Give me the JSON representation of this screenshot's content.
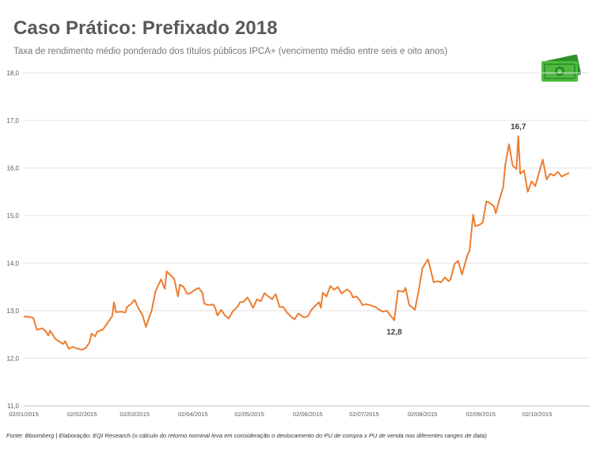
{
  "header": {
    "title": "Caso Prático: Prefixado 2018",
    "subtitle": "Taxa de rendimento médio ponderado dos títulos públicos IPCA+ (vencimento médio entre seis e oito anos)"
  },
  "footer": {
    "source": "Fonte: Bloomberg | Elaboração: EQI Research (o cálculo do retorno nominal leva em consideração o deslocamento do PU de compra x PU de venda nos diferentes ranges de data)"
  },
  "decoration": {
    "icon": "money-bill-icon",
    "color": "#3fae3a"
  },
  "chart_data": {
    "type": "line",
    "title": "",
    "xlabel": "",
    "ylabel": "",
    "ylim": [
      11.0,
      18.0
    ],
    "xlim": [
      "2015-01-02",
      "2015-10-30"
    ],
    "yticks": [
      "11,0",
      "12,0",
      "13,0",
      "14,0",
      "15,0",
      "16,0",
      "17,0",
      "18,0"
    ],
    "xticks": [
      {
        "date": "2015-01-02",
        "label": "02/01/2015"
      },
      {
        "date": "2015-02-02",
        "label": "02/02/2015"
      },
      {
        "date": "2015-03-02",
        "label": "02/03/2015"
      },
      {
        "date": "2015-04-02",
        "label": "02/04/2015"
      },
      {
        "date": "2015-05-02",
        "label": "02/05/2015"
      },
      {
        "date": "2015-06-02",
        "label": "02/06/2015"
      },
      {
        "date": "2015-07-02",
        "label": "02/07/2015"
      },
      {
        "date": "2015-08-02",
        "label": "02/08/2015"
      },
      {
        "date": "2015-09-02",
        "label": "02/09/2015"
      },
      {
        "date": "2015-10-02",
        "label": "02/10/2015"
      }
    ],
    "grid": "horizontal",
    "color": "#ed7d31",
    "series": [
      {
        "name": "",
        "points": [
          [
            "2015-01-02",
            12.88
          ],
          [
            "2015-01-05",
            12.87
          ],
          [
            "2015-01-07",
            12.85
          ],
          [
            "2015-01-09",
            12.6
          ],
          [
            "2015-01-12",
            12.63
          ],
          [
            "2015-01-14",
            12.55
          ],
          [
            "2015-01-15",
            12.48
          ],
          [
            "2015-01-16",
            12.58
          ],
          [
            "2015-01-19",
            12.4
          ],
          [
            "2015-01-21",
            12.35
          ],
          [
            "2015-01-23",
            12.3
          ],
          [
            "2015-01-24",
            12.36
          ],
          [
            "2015-01-26",
            12.2
          ],
          [
            "2015-01-28",
            12.24
          ],
          [
            "2015-01-30",
            12.21
          ],
          [
            "2015-02-02",
            12.18
          ],
          [
            "2015-02-04",
            12.22
          ],
          [
            "2015-02-06",
            12.33
          ],
          [
            "2015-02-07",
            12.52
          ],
          [
            "2015-02-09",
            12.46
          ],
          [
            "2015-02-10",
            12.56
          ],
          [
            "2015-02-13",
            12.6
          ],
          [
            "2015-02-16",
            12.77
          ],
          [
            "2015-02-18",
            12.88
          ],
          [
            "2015-02-19",
            13.18
          ],
          [
            "2015-02-20",
            12.97
          ],
          [
            "2015-02-23",
            12.98
          ],
          [
            "2015-02-25",
            12.96
          ],
          [
            "2015-02-26",
            13.08
          ],
          [
            "2015-02-28",
            13.14
          ],
          [
            "2015-03-02",
            13.23
          ],
          [
            "2015-03-04",
            13.05
          ],
          [
            "2015-03-06",
            12.92
          ],
          [
            "2015-03-08",
            12.66
          ],
          [
            "2015-03-10",
            12.9
          ],
          [
            "2015-03-11",
            13.0
          ],
          [
            "2015-03-13",
            13.4
          ],
          [
            "2015-03-16",
            13.66
          ],
          [
            "2015-03-18",
            13.46
          ],
          [
            "2015-03-19",
            13.83
          ],
          [
            "2015-03-21",
            13.75
          ],
          [
            "2015-03-23",
            13.67
          ],
          [
            "2015-03-25",
            13.3
          ],
          [
            "2015-03-26",
            13.55
          ],
          [
            "2015-03-28",
            13.5
          ],
          [
            "2015-03-30",
            13.35
          ],
          [
            "2015-04-01",
            13.38
          ],
          [
            "2015-04-03",
            13.44
          ],
          [
            "2015-04-05",
            13.48
          ],
          [
            "2015-04-07",
            13.38
          ],
          [
            "2015-04-08",
            13.15
          ],
          [
            "2015-04-10",
            13.12
          ],
          [
            "2015-04-13",
            13.13
          ],
          [
            "2015-04-14",
            13.03
          ],
          [
            "2015-04-15",
            12.9
          ],
          [
            "2015-04-17",
            13.02
          ],
          [
            "2015-04-19",
            12.9
          ],
          [
            "2015-04-21",
            12.84
          ],
          [
            "2015-04-23",
            12.98
          ],
          [
            "2015-04-26",
            13.1
          ],
          [
            "2015-04-27",
            13.18
          ],
          [
            "2015-04-29",
            13.19
          ],
          [
            "2015-05-01",
            13.28
          ],
          [
            "2015-05-04",
            13.06
          ],
          [
            "2015-05-06",
            13.24
          ],
          [
            "2015-05-08",
            13.2
          ],
          [
            "2015-05-10",
            13.37
          ],
          [
            "2015-05-12",
            13.3
          ],
          [
            "2015-05-14",
            13.24
          ],
          [
            "2015-05-16",
            13.35
          ],
          [
            "2015-05-18",
            13.08
          ],
          [
            "2015-05-20",
            13.08
          ],
          [
            "2015-05-22",
            12.96
          ],
          [
            "2015-05-24",
            12.88
          ],
          [
            "2015-05-26",
            12.82
          ],
          [
            "2015-05-28",
            12.94
          ],
          [
            "2015-05-31",
            12.86
          ],
          [
            "2015-06-02",
            12.88
          ],
          [
            "2015-06-04",
            13.02
          ],
          [
            "2015-06-06",
            13.1
          ],
          [
            "2015-06-08",
            13.18
          ],
          [
            "2015-06-09",
            13.06
          ],
          [
            "2015-06-10",
            13.38
          ],
          [
            "2015-06-12",
            13.3
          ],
          [
            "2015-06-14",
            13.52
          ],
          [
            "2015-06-16",
            13.44
          ],
          [
            "2015-06-18",
            13.5
          ],
          [
            "2015-06-20",
            13.36
          ],
          [
            "2015-06-23",
            13.45
          ],
          [
            "2015-06-25",
            13.38
          ],
          [
            "2015-06-26",
            13.28
          ],
          [
            "2015-06-28",
            13.3
          ],
          [
            "2015-06-30",
            13.2
          ],
          [
            "2015-07-01",
            13.12
          ],
          [
            "2015-07-03",
            13.14
          ],
          [
            "2015-07-05",
            13.12
          ],
          [
            "2015-07-08",
            13.08
          ],
          [
            "2015-07-10",
            13.02
          ],
          [
            "2015-07-12",
            12.98
          ],
          [
            "2015-07-14",
            13.0
          ],
          [
            "2015-07-16",
            12.9
          ],
          [
            "2015-07-18",
            12.8
          ],
          [
            "2015-07-20",
            13.42
          ],
          [
            "2015-07-23",
            13.4
          ],
          [
            "2015-07-24",
            13.48
          ],
          [
            "2015-07-26",
            13.12
          ],
          [
            "2015-07-29",
            13.02
          ],
          [
            "2015-07-31",
            13.42
          ],
          [
            "2015-08-02",
            13.9
          ],
          [
            "2015-08-05",
            14.08
          ],
          [
            "2015-08-08",
            13.6
          ],
          [
            "2015-08-10",
            13.62
          ],
          [
            "2015-08-12",
            13.6
          ],
          [
            "2015-08-14",
            13.7
          ],
          [
            "2015-08-16",
            13.62
          ],
          [
            "2015-08-17",
            13.66
          ],
          [
            "2015-08-19",
            13.98
          ],
          [
            "2015-08-21",
            14.05
          ],
          [
            "2015-08-23",
            13.76
          ],
          [
            "2015-08-26",
            14.18
          ],
          [
            "2015-08-27",
            14.25
          ],
          [
            "2015-08-29",
            15.02
          ],
          [
            "2015-08-30",
            14.78
          ],
          [
            "2015-09-01",
            14.8
          ],
          [
            "2015-09-03",
            14.85
          ],
          [
            "2015-09-05",
            15.3
          ],
          [
            "2015-09-07",
            15.26
          ],
          [
            "2015-09-09",
            15.2
          ],
          [
            "2015-09-10",
            15.05
          ],
          [
            "2015-09-12",
            15.35
          ],
          [
            "2015-09-14",
            15.6
          ],
          [
            "2015-09-15",
            16.05
          ],
          [
            "2015-09-17",
            16.5
          ],
          [
            "2015-09-19",
            16.05
          ],
          [
            "2015-09-21",
            15.98
          ],
          [
            "2015-09-22",
            16.67
          ],
          [
            "2015-09-23",
            15.88
          ],
          [
            "2015-09-25",
            15.95
          ],
          [
            "2015-09-27",
            15.5
          ],
          [
            "2015-09-29",
            15.72
          ],
          [
            "2015-10-01",
            15.62
          ],
          [
            "2015-10-03",
            15.9
          ],
          [
            "2015-10-05",
            16.18
          ],
          [
            "2015-10-07",
            15.76
          ],
          [
            "2015-10-09",
            15.88
          ],
          [
            "2015-10-11",
            15.84
          ],
          [
            "2015-10-13",
            15.92
          ],
          [
            "2015-10-15",
            15.82
          ],
          [
            "2015-10-17",
            15.86
          ],
          [
            "2015-10-19",
            15.9
          ]
        ]
      }
    ],
    "annotations": [
      {
        "date": "2015-07-18",
        "value": 12.8,
        "label": "12,8",
        "position": "below"
      },
      {
        "date": "2015-09-22",
        "value": 16.67,
        "label": "16,7",
        "position": "above"
      }
    ]
  }
}
